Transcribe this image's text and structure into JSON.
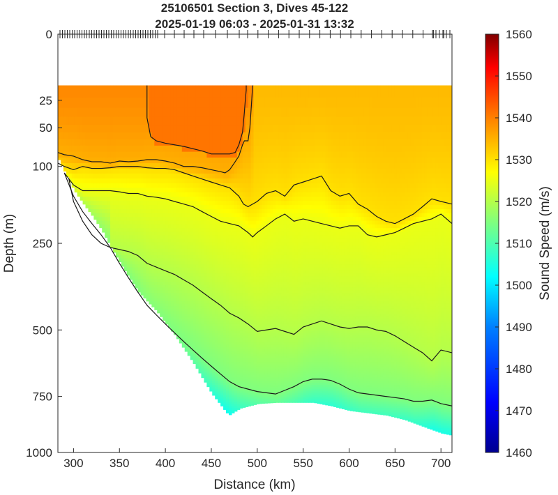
{
  "chart_data": {
    "type": "heatmap",
    "title": "25106501 Section 3, Dives 45-122",
    "subtitle": "2025-01-19 06:03 - 2025-01-31 13:32",
    "xlabel": "Distance (km)",
    "ylabel": "Depth (m)",
    "xlim": [
      283,
      712
    ],
    "ylim": [
      0,
      1000
    ],
    "y_scale": "sqrt",
    "x_ticks": [
      "300",
      "350",
      "400",
      "450",
      "500",
      "550",
      "600",
      "650",
      "700"
    ],
    "y_ticks": [
      "0",
      "25",
      "50",
      "100",
      "250",
      "500",
      "750",
      "1000"
    ],
    "colorbar": {
      "label": "Sound Speed (m/s)",
      "min": 1460,
      "max": 1560,
      "ticks": [
        "1460",
        "1470",
        "1480",
        "1490",
        "1500",
        "1510",
        "1520",
        "1530",
        "1540",
        "1550",
        "1560"
      ]
    },
    "data_top_depth": 15,
    "bottom_profile": {
      "x": [
        283,
        290,
        300,
        310,
        320,
        330,
        340,
        350,
        360,
        370,
        380,
        390,
        400,
        410,
        420,
        430,
        440,
        450,
        460,
        468,
        480,
        500,
        520,
        540,
        560,
        580,
        600,
        620,
        640,
        660,
        680,
        700,
        712
      ],
      "depth": [
        90,
        110,
        140,
        165,
        190,
        220,
        260,
        300,
        340,
        380,
        410,
        440,
        480,
        520,
        570,
        620,
        680,
        740,
        790,
        830,
        800,
        780,
        775,
        775,
        775,
        790,
        810,
        820,
        830,
        850,
        880,
        910,
        920
      ]
    },
    "contours": [
      {
        "level": 1540,
        "x": [
          380,
          380,
          384,
          390,
          400,
          410,
          420,
          430,
          440,
          450,
          460,
          470,
          476,
          480,
          484,
          486,
          487,
          488,
          488
        ],
        "depth": [
          15,
          40,
          60,
          65,
          68,
          70,
          72,
          75,
          78,
          82,
          82,
          82,
          80,
          70,
          55,
          35,
          25,
          18,
          15
        ]
      },
      {
        "level": 1535,
        "x": [
          283,
          290,
          300,
          310,
          320,
          330,
          340,
          350,
          360,
          370,
          380,
          390,
          400,
          410,
          420,
          430,
          440,
          450,
          460,
          465,
          470,
          475,
          480,
          484,
          486,
          490,
          492,
          494,
          495
        ],
        "depth": [
          80,
          83,
          85,
          90,
          93,
          93,
          95,
          92,
          93,
          92,
          90,
          90,
          92,
          95,
          100,
          100,
          102,
          105,
          108,
          110,
          105,
          95,
          85,
          70,
          65,
          65,
          50,
          25,
          15
        ]
      },
      {
        "level": 1530,
        "x": [
          283,
          290,
          300,
          310,
          320,
          330,
          340,
          350,
          360,
          370,
          380,
          390,
          400,
          410,
          420,
          430,
          440,
          450,
          460,
          470,
          480,
          485,
          490,
          495,
          500,
          510,
          520,
          530,
          540,
          550,
          560,
          570,
          580,
          590,
          600,
          610,
          620,
          630,
          640,
          650,
          660,
          670,
          680,
          690,
          700,
          712
        ],
        "depth": [
          95,
          100,
          105,
          100,
          103,
          103,
          102,
          100,
          100,
          100,
          102,
          103,
          103,
          105,
          110,
          115,
          120,
          125,
          130,
          135,
          150,
          165,
          170,
          165,
          160,
          145,
          140,
          150,
          130,
          125,
          120,
          115,
          140,
          150,
          145,
          165,
          175,
          190,
          200,
          205,
          195,
          185,
          170,
          155,
          160,
          165
        ]
      },
      {
        "level": 1525,
        "x": [
          290,
          300,
          310,
          320,
          330,
          340,
          350,
          360,
          370,
          380,
          390,
          400,
          410,
          420,
          430,
          440,
          450,
          460,
          470,
          480,
          490,
          495,
          500,
          510,
          520,
          530,
          540,
          550,
          560,
          570,
          580,
          590,
          600,
          610,
          620,
          630,
          640,
          650,
          660,
          670,
          680,
          690,
          700,
          712
        ],
        "depth": [
          110,
          130,
          140,
          140,
          140,
          140,
          142,
          145,
          145,
          150,
          152,
          155,
          160,
          165,
          170,
          180,
          190,
          200,
          205,
          210,
          225,
          235,
          225,
          210,
          195,
          185,
          200,
          195,
          200,
          205,
          210,
          215,
          210,
          210,
          230,
          235,
          230,
          225,
          215,
          205,
          200,
          195,
          185,
          205
        ]
      },
      {
        "level": 1520,
        "x": [
          295,
          300,
          310,
          320,
          330,
          340,
          350,
          360,
          370,
          380,
          390,
          400,
          410,
          420,
          430,
          440,
          450,
          460,
          470,
          480,
          490,
          500,
          510,
          520,
          530,
          540,
          550,
          560,
          570,
          580,
          590,
          600,
          610,
          620,
          630,
          640,
          650,
          660,
          670,
          680,
          690,
          700,
          712
        ],
        "depth": [
          120,
          160,
          200,
          230,
          250,
          260,
          265,
          270,
          280,
          300,
          310,
          320,
          330,
          345,
          360,
          380,
          400,
          420,
          445,
          460,
          480,
          505,
          500,
          495,
          505,
          515,
          490,
          480,
          470,
          480,
          490,
          495,
          490,
          490,
          500,
          505,
          520,
          540,
          560,
          580,
          610,
          570,
          580
        ]
      },
      {
        "level": 1515,
        "x": [
          290,
          300,
          310,
          320,
          330,
          340,
          350,
          360,
          370,
          380,
          390,
          400,
          410,
          420,
          430,
          440,
          450,
          460,
          470,
          480,
          490,
          500,
          510,
          520,
          530,
          540,
          550,
          560,
          570,
          580,
          590,
          600,
          610,
          620,
          630,
          640,
          650,
          660,
          670,
          680,
          690,
          700,
          712
        ],
        "depth": [
          110,
          150,
          180,
          205,
          230,
          260,
          300,
          340,
          380,
          420,
          450,
          480,
          510,
          540,
          570,
          600,
          630,
          660,
          690,
          710,
          720,
          730,
          735,
          740,
          725,
          710,
          690,
          680,
          680,
          685,
          700,
          720,
          735,
          740,
          745,
          750,
          755,
          760,
          770,
          770,
          765,
          780,
          790
        ]
      }
    ]
  }
}
